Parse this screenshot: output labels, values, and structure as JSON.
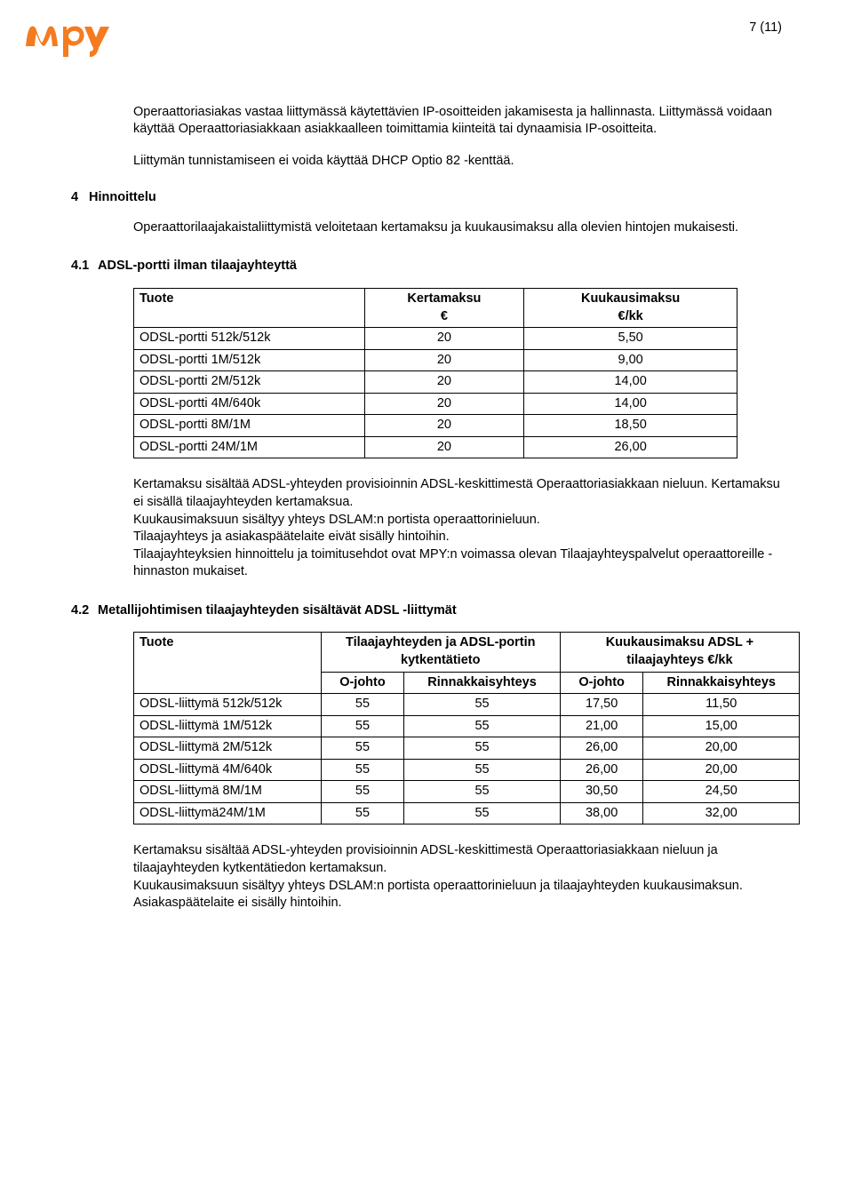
{
  "pageNumber": "7 (11)",
  "intro": {
    "p1": "Operaattoriasiakas vastaa liittymässä käytettävien IP-osoitteiden jakamisesta ja hallinnasta. Liittymässä voidaan käyttää Operaattoriasiakkaan asiakkaalleen toimittamia kiinteitä tai dynaamisia IP-osoitteita.",
    "p2": "Liittymän tunnistamiseen ei voida käyttää DHCP Optio 82 -kenttää."
  },
  "section4": {
    "num": "4",
    "title": "Hinnoittelu",
    "desc": "Operaattorilaajakaistaliittymistä veloitetaan kertamaksu ja kuukausimaksu alla olevien hintojen mukaisesti."
  },
  "section4_1": {
    "num": "4.1",
    "title": "ADSL-portti ilman tilaajayhteyttä",
    "table": {
      "headers": {
        "c1": "Tuote",
        "c2": "Kertamaksu\n€",
        "c3": "Kuukausimaksu\n€/kk"
      },
      "rows": [
        {
          "product": "ODSL-portti 512k/512k",
          "kerta": "20",
          "kuu": "5,50"
        },
        {
          "product": "ODSL-portti 1M/512k",
          "kerta": "20",
          "kuu": "9,00"
        },
        {
          "product": "ODSL-portti 2M/512k",
          "kerta": "20",
          "kuu": "14,00"
        },
        {
          "product": "ODSL-portti 4M/640k",
          "kerta": "20",
          "kuu": "14,00"
        },
        {
          "product": "ODSL-portti 8M/1M",
          "kerta": "20",
          "kuu": "18,50"
        },
        {
          "product": "ODSL-portti 24M/1M",
          "kerta": "20",
          "kuu": "26,00"
        }
      ]
    },
    "after": {
      "p1": "Kertamaksu sisältää ADSL-yhteyden provisioinnin ADSL-keskittimestä Operaattoriasiakkaan nieluun. Kertamaksu ei sisällä tilaajayhteyden kertamaksua.",
      "p2": "Kuukausimaksuun sisältyy yhteys DSLAM:n portista operaattorinieluun.",
      "p3": "Tilaajayhteys ja asiakaspäätelaite eivät sisälly hintoihin.",
      "p4": "Tilaajayhteyksien hinnoittelu ja toimitusehdot ovat MPY:n voimassa olevan Tilaajayhteyspalvelut operaattoreille -hinnaston mukaiset."
    }
  },
  "section4_2": {
    "num": "4.2",
    "title": "Metallijohtimisen tilaajayhteyden sisältävät ADSL -liittymät",
    "table": {
      "headers": {
        "c1": "Tuote",
        "c2": "Tilaajayhteyden ja ADSL-portin kytkentätieto",
        "c3": "Kuukausimaksu ADSL + tilaajayhteys €/kk",
        "s1": "O-johto",
        "s2": "Rinnakkaisyhteys",
        "s3": "O-johto",
        "s4": "Rinnakkaisyhteys"
      },
      "rows": [
        {
          "product": "ODSL-liittymä 512k/512k",
          "o1": "55",
          "r1": "55",
          "o2": "17,50",
          "r2": "11,50"
        },
        {
          "product": "ODSL-liittymä 1M/512k",
          "o1": "55",
          "r1": "55",
          "o2": "21,00",
          "r2": "15,00"
        },
        {
          "product": "ODSL-liittymä 2M/512k",
          "o1": "55",
          "r1": "55",
          "o2": "26,00",
          "r2": "20,00"
        },
        {
          "product": "ODSL-liittymä 4M/640k",
          "o1": "55",
          "r1": "55",
          "o2": "26,00",
          "r2": "20,00"
        },
        {
          "product": "ODSL-liittymä 8M/1M",
          "o1": "55",
          "r1": "55",
          "o2": "30,50",
          "r2": "24,50"
        },
        {
          "product": "ODSL-liittymä24M/1M",
          "o1": "55",
          "r1": "55",
          "o2": "38,00",
          "r2": "32,00"
        }
      ]
    },
    "after": {
      "p1": "Kertamaksu sisältää ADSL-yhteyden provisioinnin ADSL-keskittimestä Operaattoriasiakkaan nieluun ja tilaajayhteyden kytkentätiedon kertamaksun.",
      "p2": "Kuukausimaksuun sisältyy yhteys DSLAM:n portista operaattorinieluun ja tilaajayhteyden kuukausimaksun.",
      "p3": "Asiakaspäätelaite ei sisälly hintoihin."
    }
  },
  "logo": {
    "color": "#f57b20"
  }
}
